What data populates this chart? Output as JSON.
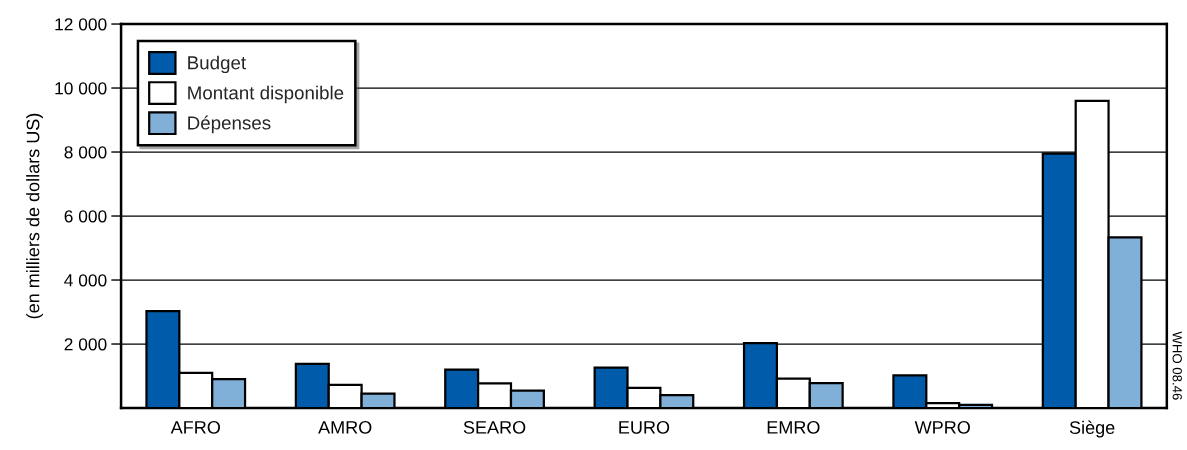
{
  "chart_data": {
    "type": "bar",
    "ylabel": "(en milliers de dollars US)",
    "annotations": [
      "WHO 08.46"
    ],
    "categories": [
      "AFRO",
      "AMRO",
      "SEARO",
      "EURO",
      "EMRO",
      "WPRO",
      "Siège"
    ],
    "series": [
      {
        "name": "Budget",
        "color": "#005bab",
        "values": [
          3030,
          1380,
          1200,
          1260,
          2030,
          1020,
          7950
        ]
      },
      {
        "name": "Montant disponible",
        "color": "#ffffff",
        "values": [
          1100,
          720,
          770,
          630,
          920,
          150,
          9600
        ]
      },
      {
        "name": "Dépenses",
        "color": "#80afd7",
        "values": [
          900,
          450,
          540,
          400,
          780,
          100,
          5330
        ]
      }
    ],
    "ylim": [
      0,
      12000
    ],
    "yticks": [
      {
        "value": 2000,
        "label": "2 000"
      },
      {
        "value": 4000,
        "label": "4 000"
      },
      {
        "value": 6000,
        "label": "6 000"
      },
      {
        "value": 8000,
        "label": "8 000"
      },
      {
        "value": 10000,
        "label": "10 000"
      },
      {
        "value": 12000,
        "label": "12 000"
      }
    ],
    "grid": "y",
    "legend": "top left"
  }
}
